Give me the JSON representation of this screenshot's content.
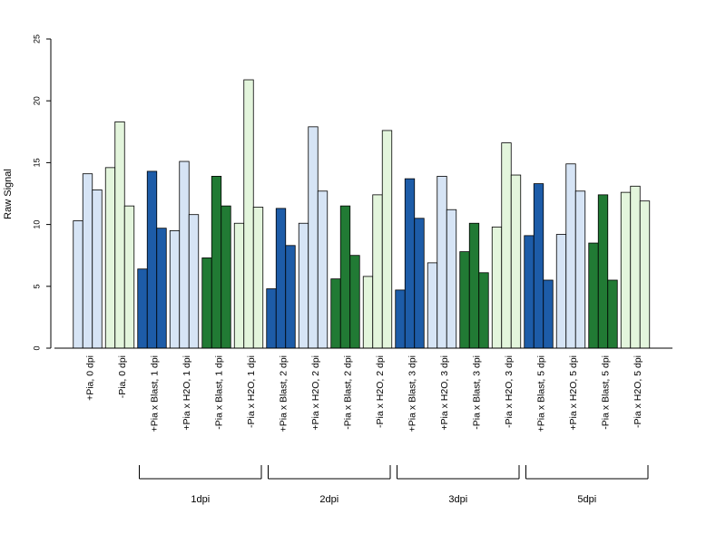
{
  "chart_data": {
    "type": "bar",
    "ylabel": "Raw Signal",
    "ylim": [
      0,
      25
    ],
    "yticks": [
      0,
      5,
      10,
      15,
      20,
      25
    ],
    "grid": false,
    "colors": {
      "light_blue": "#d6e4f5",
      "light_green": "#e3f5dc",
      "dark_blue": "#1d5ca8",
      "dark_green": "#217a34"
    },
    "categories": [
      "+Pia, 0 dpi",
      "-Pia, 0 dpi",
      "+Pia x Blast, 1 dpi",
      "+Pia x H2O, 1 dpi",
      "-Pia x Blast, 1 dpi",
      "-Pia x H2O, 1 dpi",
      "+Pia x Blast, 2 dpi",
      "+Pia x H2O, 2 dpi",
      "-Pia x Blast, 2 dpi",
      "-Pia x H2O, 2 dpi",
      "+Pia x Blast, 3 dpi",
      "+Pia x H2O, 3 dpi",
      "-Pia x Blast, 3 dpi",
      "-Pia x H2O, 3 dpi",
      "+Pia x Blast, 5 dpi",
      "+Pia x H2O, 5 dpi",
      "-Pia x Blast, 5 dpi",
      "-Pia x H2O, 5 dpi"
    ],
    "category_colors": [
      "light_blue",
      "light_green",
      "dark_blue",
      "light_blue",
      "dark_green",
      "light_green",
      "dark_blue",
      "light_blue",
      "dark_green",
      "light_green",
      "dark_blue",
      "light_blue",
      "dark_green",
      "light_green",
      "dark_blue",
      "light_blue",
      "dark_green",
      "light_green"
    ],
    "values": [
      [
        10.3,
        14.1,
        12.8
      ],
      [
        14.6,
        18.3,
        11.5
      ],
      [
        6.4,
        14.3,
        9.7
      ],
      [
        9.5,
        15.1,
        10.8
      ],
      [
        7.3,
        13.9,
        11.5
      ],
      [
        10.1,
        21.7,
        11.4
      ],
      [
        4.8,
        11.3,
        8.3
      ],
      [
        10.1,
        17.9,
        12.7
      ],
      [
        5.6,
        11.5,
        7.5
      ],
      [
        5.8,
        12.4,
        17.6
      ],
      [
        4.7,
        13.7,
        10.5
      ],
      [
        6.9,
        13.9,
        11.2
      ],
      [
        7.8,
        10.1,
        6.1
      ],
      [
        9.8,
        16.6,
        14.0
      ],
      [
        9.1,
        13.3,
        5.5
      ],
      [
        9.2,
        14.9,
        12.7
      ],
      [
        8.5,
        12.4,
        5.5
      ],
      [
        12.6,
        13.1,
        11.9
      ]
    ],
    "groups": [
      {
        "label": "1dpi",
        "start": 2,
        "end": 5
      },
      {
        "label": "2dpi",
        "start": 6,
        "end": 9
      },
      {
        "label": "3dpi",
        "start": 10,
        "end": 13
      },
      {
        "label": "5dpi",
        "start": 14,
        "end": 17
      }
    ]
  }
}
